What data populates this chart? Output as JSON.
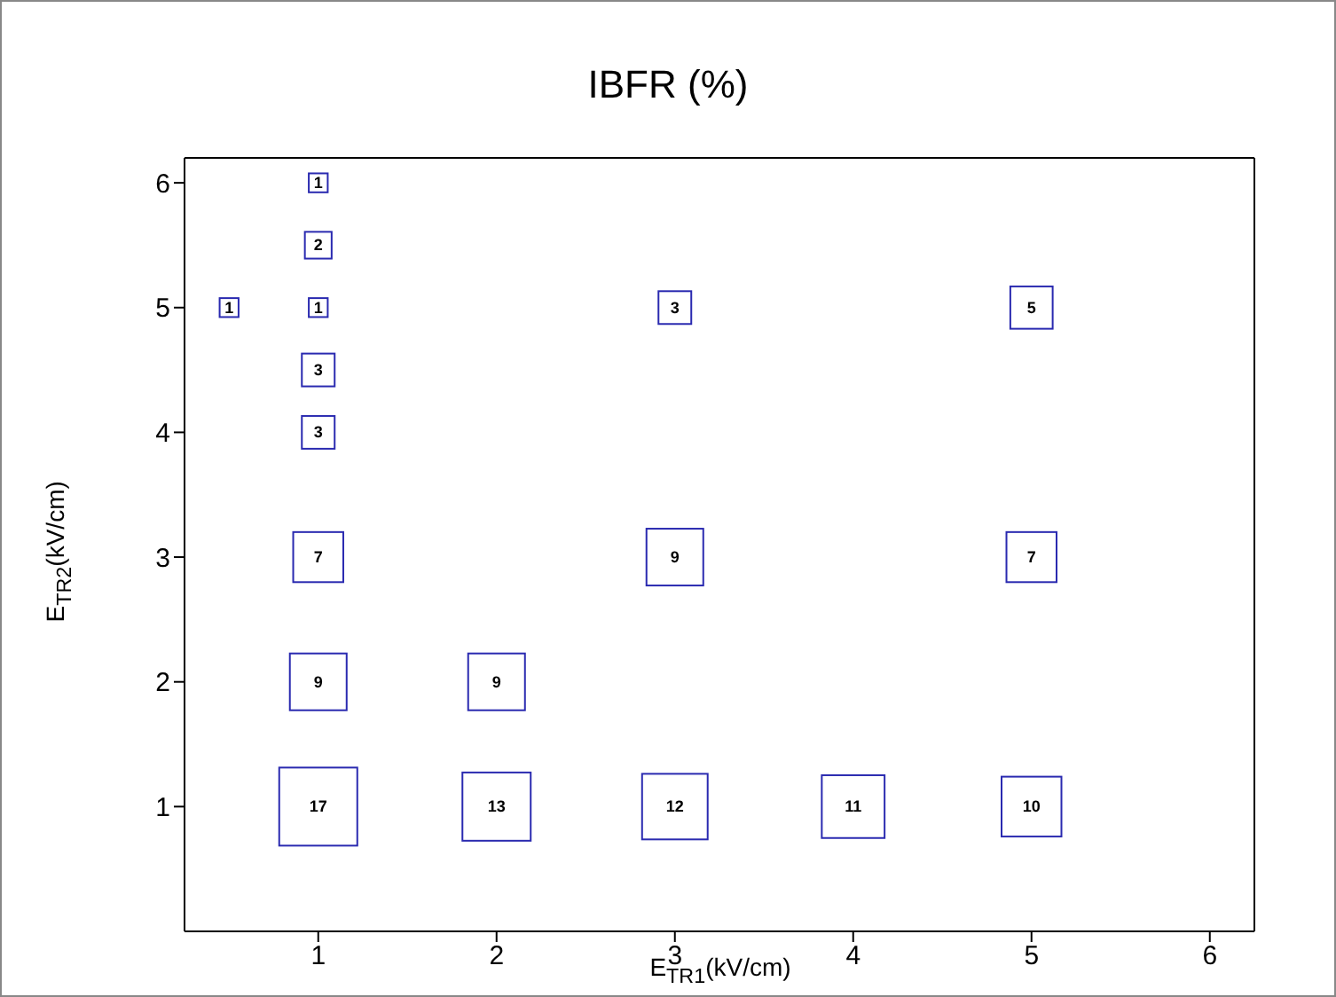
{
  "chart_data": {
    "type": "bubble",
    "title": "IBFR (%)",
    "xlabel": "E$_{TR1}$(kV/cm)",
    "ylabel": "E$_{TR2}$(kV/cm)",
    "x": [
      0.5,
      1,
      1,
      1,
      1,
      1,
      1,
      1,
      1,
      2,
      2,
      3,
      3,
      3,
      4,
      5,
      5,
      5
    ],
    "values": [
      5,
      6,
      5.5,
      5,
      4.5,
      4,
      3,
      2,
      1,
      2,
      1,
      5,
      3,
      1,
      1,
      5,
      3,
      1
    ],
    "sizes": [
      1,
      1,
      2,
      1,
      3,
      3,
      7,
      9,
      17,
      9,
      13,
      3,
      9,
      12,
      11,
      5,
      7,
      10
    ],
    "value_labels": [
      "1",
      "1",
      "2",
      "1",
      "3",
      "3",
      "7",
      "9",
      "17",
      "9",
      "13",
      "3",
      "9",
      "12",
      "11",
      "5",
      "7",
      "10"
    ],
    "color": "#2a2ab0",
    "marker": "square",
    "xlim": [
      0.25,
      6.25
    ],
    "xticks": [
      1,
      2,
      3,
      4,
      5,
      6
    ],
    "ylim": [
      0,
      6.2
    ],
    "yticks": [
      1,
      2,
      3,
      4,
      5,
      6
    ],
    "grid": false
  }
}
